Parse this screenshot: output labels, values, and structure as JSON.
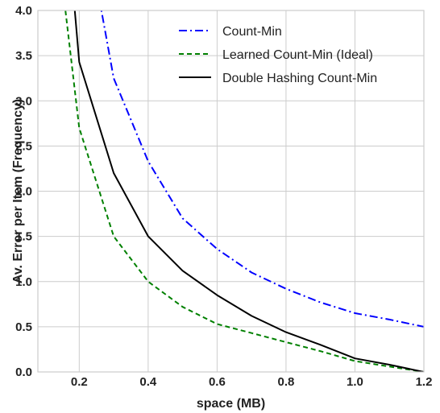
{
  "chart_data": {
    "type": "line",
    "xlabel": "space (MB)",
    "ylabel": "Av. Error per Item (Frequency)",
    "xlim": [
      0.08,
      1.2
    ],
    "ylim": [
      0.0,
      4.0
    ],
    "xticks": [
      0.2,
      0.4,
      0.6,
      0.8,
      1.0,
      1.2
    ],
    "xtick_labels": [
      "0.2",
      "0.4",
      "0.6",
      "0.8",
      "1.0",
      "1.2"
    ],
    "yticks": [
      0.0,
      0.5,
      1.0,
      1.5,
      2.0,
      2.5,
      3.0,
      3.5,
      4.0
    ],
    "ytick_labels": [
      "0.0",
      "0.5",
      "1.0",
      "1.5",
      "2.0",
      "2.5",
      "3.0",
      "3.5",
      "4.0"
    ],
    "grid": true,
    "legend_position": "top-right",
    "series": [
      {
        "name": "Count-Min",
        "color": "#0000ff",
        "style": "dash-dot",
        "x": [
          0.25,
          0.3,
          0.4,
          0.5,
          0.6,
          0.7,
          0.8,
          0.9,
          1.0,
          1.1,
          1.2
        ],
        "y": [
          4.3,
          3.25,
          2.33,
          1.7,
          1.36,
          1.1,
          0.92,
          0.77,
          0.65,
          0.58,
          0.5
        ]
      },
      {
        "name": "Learned Count-Min (Ideal)",
        "color": "#008000",
        "style": "dashed",
        "x": [
          0.16,
          0.2,
          0.3,
          0.4,
          0.5,
          0.6,
          0.7,
          0.8,
          0.9,
          1.0,
          1.1,
          1.2
        ],
        "y": [
          4.0,
          2.7,
          1.5,
          1.0,
          0.72,
          0.53,
          0.43,
          0.33,
          0.23,
          0.12,
          0.06,
          0.0
        ]
      },
      {
        "name": "Double Hashing Count-Min",
        "color": "#000000",
        "style": "solid",
        "x": [
          0.187,
          0.2,
          0.3,
          0.4,
          0.5,
          0.6,
          0.7,
          0.8,
          0.9,
          1.0,
          1.1,
          1.2
        ],
        "y": [
          4.0,
          3.43,
          2.2,
          1.5,
          1.12,
          0.85,
          0.62,
          0.44,
          0.3,
          0.15,
          0.08,
          0.0
        ]
      }
    ]
  }
}
